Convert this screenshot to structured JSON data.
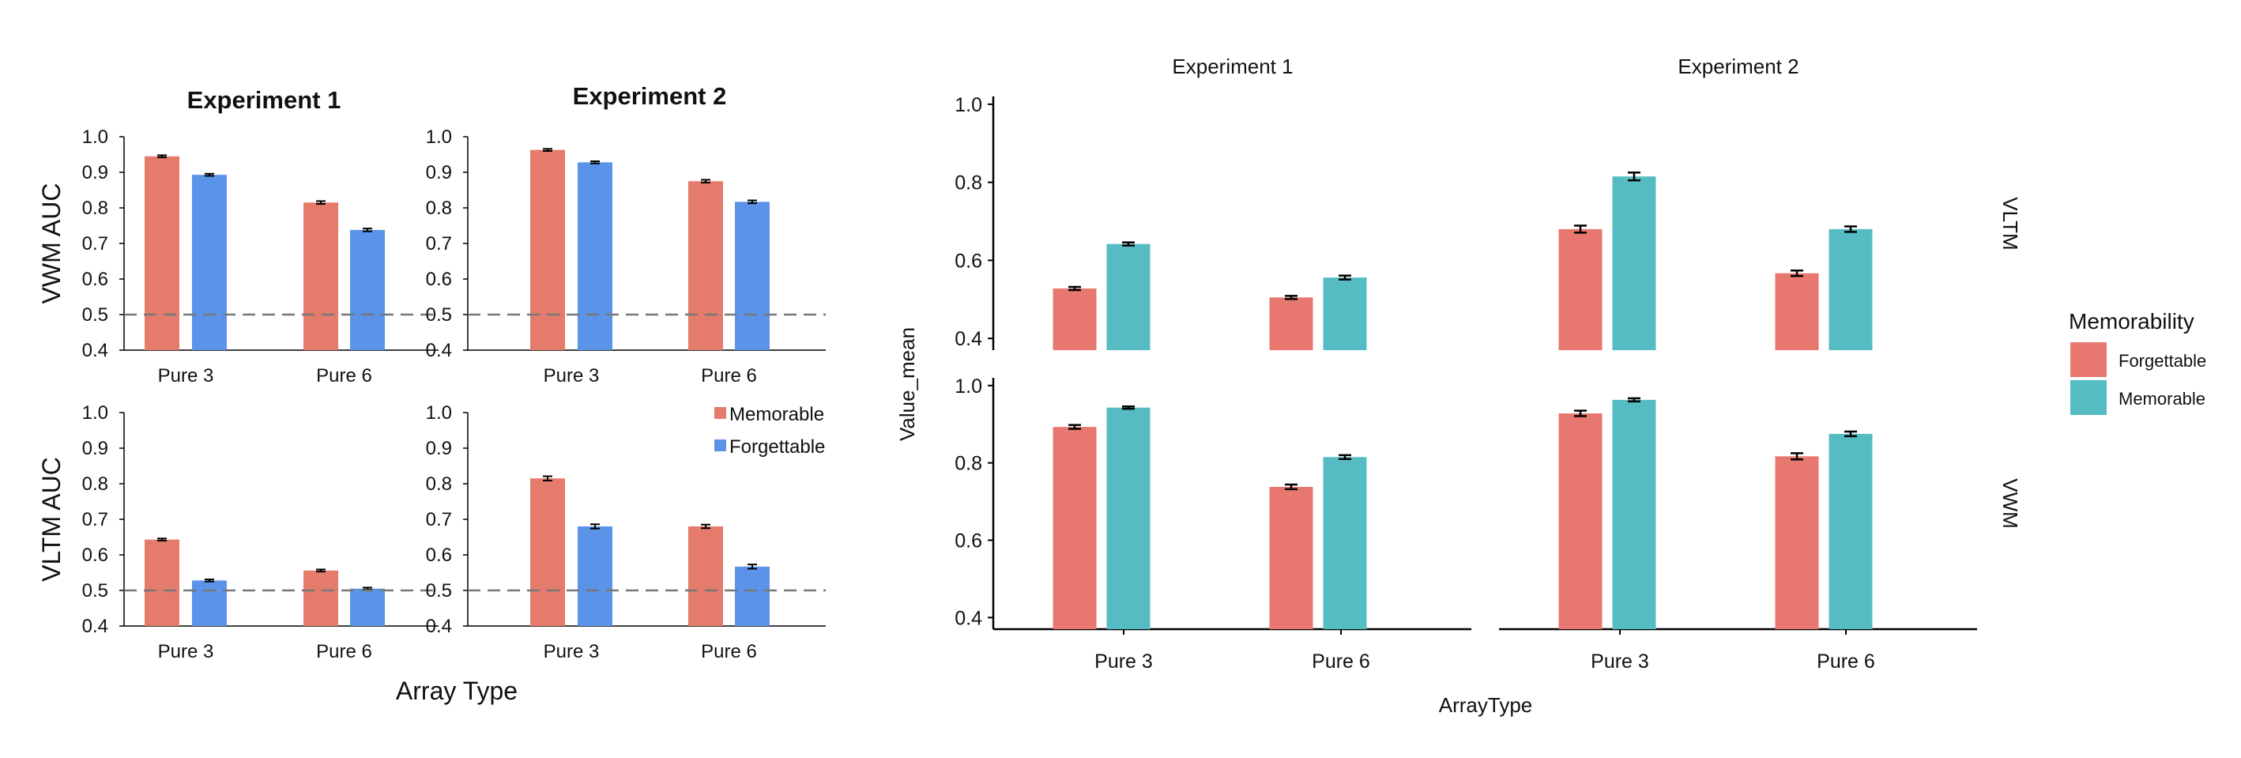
{
  "colors": {
    "left_memorable": "#E57B6B",
    "left_forgettable": "#5B93E8",
    "right_forgettable": "#E8786F",
    "right_memorable": "#56BCC4",
    "axis": "#000000",
    "chance_line": "#777777"
  },
  "left_figure": {
    "x_title": "Array Type",
    "legend": {
      "items": [
        {
          "label": "Memorable",
          "color": "#E57B6B"
        },
        {
          "label": "Forgettable",
          "color": "#5B93E8"
        }
      ]
    }
  },
  "right_figure": {
    "x_title": "ArrayType",
    "y_title": "Value_mean",
    "legend": {
      "title": "Memorability",
      "items": [
        {
          "label": "Forgettable",
          "color": "#E8786F"
        },
        {
          "label": "Memorable",
          "color": "#56BCC4"
        }
      ]
    }
  },
  "chart_data": [
    {
      "type": "bar",
      "title": "Experiment 1",
      "ylabel": "VWM AUC",
      "xlabel": "",
      "categories": [
        "Pure 3",
        "Pure 6"
      ],
      "ylim": [
        0.4,
        1.0
      ],
      "yticks": [
        "0.4",
        "0.5",
        "0.6",
        "0.7",
        "0.8",
        "0.9",
        "1.0"
      ],
      "reference_line": 0.5,
      "series": [
        {
          "name": "Memorable",
          "values": [
            0.945,
            0.815
          ],
          "errors": [
            0.003,
            0.004
          ]
        },
        {
          "name": "Forgettable",
          "values": [
            0.893,
            0.738
          ],
          "errors": [
            0.003,
            0.004
          ]
        }
      ]
    },
    {
      "type": "bar",
      "title": "Experiment 2",
      "ylabel": "",
      "xlabel": "",
      "categories": [
        "Pure 3",
        "Pure 6"
      ],
      "ylim": [
        0.4,
        1.0
      ],
      "yticks": [
        "0.4",
        "0.5",
        "0.6",
        "0.7",
        "0.8",
        "0.9",
        "1.0"
      ],
      "reference_line": 0.5,
      "series": [
        {
          "name": "Memorable",
          "values": [
            0.963,
            0.875
          ],
          "errors": [
            0.003,
            0.004
          ]
        },
        {
          "name": "Forgettable",
          "values": [
            0.928,
            0.817
          ],
          "errors": [
            0.003,
            0.004
          ]
        }
      ]
    },
    {
      "type": "bar",
      "title": "",
      "ylabel": "VLTM AUC",
      "xlabel": "",
      "categories": [
        "Pure 3",
        "Pure 6"
      ],
      "ylim": [
        0.4,
        1.0
      ],
      "yticks": [
        "0.4",
        "0.5",
        "0.6",
        "0.7",
        "0.8",
        "0.9",
        "1.0"
      ],
      "reference_line": 0.5,
      "series": [
        {
          "name": "Memorable",
          "values": [
            0.643,
            0.556
          ],
          "errors": [
            0.003,
            0.003
          ]
        },
        {
          "name": "Forgettable",
          "values": [
            0.528,
            0.505
          ],
          "errors": [
            0.003,
            0.003
          ]
        }
      ]
    },
    {
      "type": "bar",
      "title": "",
      "ylabel": "",
      "xlabel": "",
      "categories": [
        "Pure 3",
        "Pure 6"
      ],
      "ylim": [
        0.4,
        1.0
      ],
      "yticks": [
        "0.4",
        "0.5",
        "0.6",
        "0.7",
        "0.8",
        "0.9",
        "1.0"
      ],
      "reference_line": 0.5,
      "series": [
        {
          "name": "Memorable",
          "values": [
            0.815,
            0.68
          ],
          "errors": [
            0.006,
            0.005
          ]
        },
        {
          "name": "Forgettable",
          "values": [
            0.68,
            0.567
          ],
          "errors": [
            0.006,
            0.006
          ]
        }
      ]
    },
    {
      "type": "bar",
      "title": "Experiment 1",
      "ylabel": "",
      "xlabel": "",
      "facet_row_label": "VLTM",
      "categories": [
        "Pure 3",
        "Pure 6"
      ],
      "show_category_labels": false,
      "ylim": [
        0.37,
        1.02
      ],
      "yticks": [
        "0.4",
        "0.6",
        "0.8",
        "1.0"
      ],
      "series": [
        {
          "name": "Forgettable",
          "values": [
            0.528,
            0.505
          ],
          "errors": [
            0.004,
            0.004
          ]
        },
        {
          "name": "Memorable",
          "values": [
            0.642,
            0.556
          ],
          "errors": [
            0.004,
            0.005
          ]
        }
      ]
    },
    {
      "type": "bar",
      "title": "Experiment 2",
      "ylabel": "",
      "xlabel": "",
      "categories": [
        "Pure 3",
        "Pure 6"
      ],
      "show_category_labels": false,
      "ylim": [
        0.37,
        1.02
      ],
      "yticks": [],
      "series": [
        {
          "name": "Forgettable",
          "values": [
            0.68,
            0.567
          ],
          "errors": [
            0.009,
            0.007
          ]
        },
        {
          "name": "Memorable",
          "values": [
            0.815,
            0.68
          ],
          "errors": [
            0.01,
            0.007
          ]
        }
      ]
    },
    {
      "type": "bar",
      "title": "",
      "ylabel": "",
      "xlabel": "",
      "facet_row_label": "VWM",
      "categories": [
        "Pure 3",
        "Pure 6"
      ],
      "ylim": [
        0.37,
        1.02
      ],
      "yticks": [
        "0.4",
        "0.6",
        "0.8",
        "1.0"
      ],
      "series": [
        {
          "name": "Forgettable",
          "values": [
            0.893,
            0.738
          ],
          "errors": [
            0.005,
            0.006
          ]
        },
        {
          "name": "Memorable",
          "values": [
            0.943,
            0.815
          ],
          "errors": [
            0.003,
            0.005
          ]
        }
      ]
    },
    {
      "type": "bar",
      "title": "",
      "ylabel": "",
      "xlabel": "",
      "categories": [
        "Pure 3",
        "Pure 6"
      ],
      "ylim": [
        0.37,
        1.02
      ],
      "yticks": [],
      "series": [
        {
          "name": "Forgettable",
          "values": [
            0.928,
            0.817
          ],
          "errors": [
            0.007,
            0.008
          ]
        },
        {
          "name": "Memorable",
          "values": [
            0.963,
            0.875
          ],
          "errors": [
            0.004,
            0.006
          ]
        }
      ]
    }
  ]
}
